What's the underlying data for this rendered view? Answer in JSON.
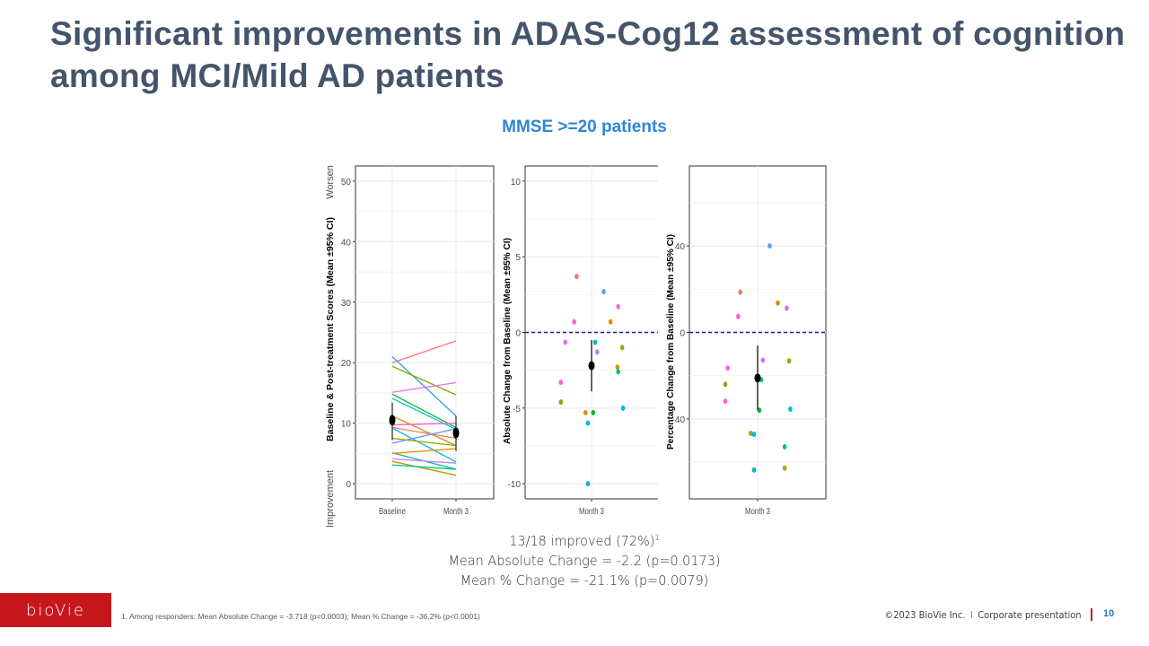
{
  "slide": {
    "title": "Significant improvements in ADAS-Cog12 assessment of cognition among MCI/Mild AD patients",
    "subtitle": "MMSE >=20 patients",
    "stats": {
      "line1": "13/18 improved (72%)",
      "line1_sup": "1",
      "line2": "Mean Absolute Change = -2.2 (p=0.0173)",
      "line3": "Mean % Change = -21.1% (p=0.0079)"
    },
    "footnote": "1. Among responders: Mean Absolute Change = -3.718 (p=0.0003); Mean % Change = -36.2% (p<0.0001)",
    "logo": "bioVie",
    "copyright": "©2023 BioVie Inc.",
    "copyright_sep": "I",
    "presentation": "Corporate presentation",
    "page_number": "10"
  },
  "colors": {
    "title": "#44546a",
    "subtitle": "#2e86d6",
    "brand_red": "#c8161d",
    "zero_line": "#1a1aa6"
  },
  "chart_data": [
    {
      "type": "line",
      "title": "",
      "xlabel": "",
      "ylabel": "Baseline & Post-treatment Scores (Mean ±95% CI)",
      "side_labels": {
        "top": "Worsen",
        "bottom": "Improvement"
      },
      "categories": [
        "Baseline",
        "Month 3"
      ],
      "ylim": [
        -2.5,
        52.5
      ],
      "yticks": [
        0,
        10,
        20,
        30,
        40,
        50
      ],
      "grid": true,
      "series": [
        {
          "color": "#f8766d",
          "values": [
            20.0,
            23.6
          ]
        },
        {
          "color": "#35a2e0",
          "values": [
            21.0,
            11.2
          ]
        },
        {
          "color": "#7cae00",
          "values": [
            19.4,
            14.7
          ]
        },
        {
          "color": "#e76bf3",
          "values": [
            15.1,
            16.7
          ]
        },
        {
          "color": "#00ba38",
          "values": [
            14.8,
            9.3
          ]
        },
        {
          "color": "#00bfc4",
          "values": [
            14.1,
            9.0
          ]
        },
        {
          "color": "#de8c00",
          "values": [
            11.2,
            6.3
          ]
        },
        {
          "color": "#fd61d1",
          "values": [
            9.7,
            10.0
          ]
        },
        {
          "color": "#f8766d",
          "values": [
            9.3,
            7.5
          ]
        },
        {
          "color": "#00b6eb",
          "values": [
            9.2,
            3.6
          ]
        },
        {
          "color": "#619cff",
          "values": [
            6.7,
            9.1
          ]
        },
        {
          "color": "#a3a500",
          "values": [
            7.5,
            6.3
          ]
        },
        {
          "color": "#00c08b",
          "values": [
            5.1,
            2.4
          ]
        },
        {
          "color": "#e58700",
          "values": [
            5.0,
            5.8
          ]
        },
        {
          "color": "#c77cff",
          "values": [
            4.1,
            3.4
          ]
        },
        {
          "color": "#b79f00",
          "values": [
            3.7,
            1.4
          ]
        },
        {
          "color": "#00c094",
          "values": [
            3.1,
            2.4
          ]
        }
      ],
      "mean": {
        "values": [
          10.5,
          8.4
        ],
        "ci_low": [
          7.2,
          5.4
        ],
        "ci_high": [
          13.4,
          11.2
        ]
      }
    },
    {
      "type": "scatter",
      "title": "",
      "xlabel": "",
      "ylabel": "Absolute Change from Baseline (Mean ±95% CI)",
      "categories": [
        "Month 3"
      ],
      "ylim": [
        -11,
        11
      ],
      "yticks": [
        -10,
        -5,
        0,
        5,
        10
      ],
      "ytick_labels": [
        "-10",
        "-5",
        "0",
        "5",
        "10"
      ],
      "grid": true,
      "reference_line": 0,
      "points": [
        {
          "jitter": -0.37,
          "y": 3.7,
          "color": "#f8766d"
        },
        {
          "jitter": 0.3,
          "y": 2.7,
          "color": "#619cff"
        },
        {
          "jitter": 0.66,
          "y": 1.7,
          "color": "#e76bf3"
        },
        {
          "jitter": -0.43,
          "y": 0.7,
          "color": "#fd61d1"
        },
        {
          "jitter": 0.47,
          "y": 0.7,
          "color": "#e58700"
        },
        {
          "jitter": -0.65,
          "y": -0.65,
          "color": "#e76bf3"
        },
        {
          "jitter": 0.09,
          "y": -0.65,
          "color": "#00bfa5"
        },
        {
          "jitter": 0.14,
          "y": -1.3,
          "color": "#c77cff"
        },
        {
          "jitter": 0.76,
          "y": -1.0,
          "color": "#a3a500"
        },
        {
          "jitter": 0.64,
          "y": -2.3,
          "color": "#c99800"
        },
        {
          "jitter": 0.66,
          "y": -2.6,
          "color": "#00c08b"
        },
        {
          "jitter": -0.76,
          "y": -3.3,
          "color": "#fd61d1"
        },
        {
          "jitter": -0.76,
          "y": -4.6,
          "color": "#7cae00"
        },
        {
          "jitter": 0.78,
          "y": -5.0,
          "color": "#00b6eb"
        },
        {
          "jitter": -0.15,
          "y": -5.3,
          "color": "#de8c00"
        },
        {
          "jitter": 0.04,
          "y": -5.3,
          "color": "#00ba38"
        },
        {
          "jitter": -0.09,
          "y": -6.0,
          "color": "#00b6eb"
        },
        {
          "jitter": -0.09,
          "y": -10.0,
          "color": "#00b6eb"
        }
      ],
      "mean": {
        "value": -2.2,
        "ci_low": -3.9,
        "ci_high": -0.5
      }
    },
    {
      "type": "scatter",
      "title": "",
      "xlabel": "",
      "ylabel": "Percentage Change from Baseline (Mean ±95% CI)",
      "categories": [
        "Month 3"
      ],
      "ylim": [
        -77,
        77
      ],
      "yticks": [
        -40,
        0,
        40
      ],
      "ytick_labels": [
        "-40",
        "0",
        "40"
      ],
      "grid": true,
      "reference_line": 0,
      "points": [
        {
          "jitter": 0.3,
          "y": 40.0,
          "color": "#619cff"
        },
        {
          "jitter": -0.43,
          "y": 18.6,
          "color": "#f8766d"
        },
        {
          "jitter": 0.5,
          "y": 13.6,
          "color": "#e58700"
        },
        {
          "jitter": 0.72,
          "y": 11.2,
          "color": "#e76bf3"
        },
        {
          "jitter": -0.48,
          "y": 7.4,
          "color": "#fd61d1"
        },
        {
          "jitter": 0.13,
          "y": -12.8,
          "color": "#c77cff"
        },
        {
          "jitter": 0.78,
          "y": -13.2,
          "color": "#a3a500"
        },
        {
          "jitter": -0.74,
          "y": -16.5,
          "color": "#e76bf3"
        },
        {
          "jitter": 0.09,
          "y": -21.9,
          "color": "#00bfa5"
        },
        {
          "jitter": -0.8,
          "y": -24.0,
          "color": "#7cae00"
        },
        {
          "jitter": -0.8,
          "y": -31.8,
          "color": "#fd61d1"
        },
        {
          "jitter": 0.04,
          "y": -36.0,
          "color": "#00ba38"
        },
        {
          "jitter": 0.81,
          "y": -35.5,
          "color": "#00b6eb"
        },
        {
          "jitter": -0.17,
          "y": -46.7,
          "color": "#c99800"
        },
        {
          "jitter": -0.09,
          "y": -47.1,
          "color": "#00b6eb"
        },
        {
          "jitter": 0.67,
          "y": -52.9,
          "color": "#00c08b"
        },
        {
          "jitter": -0.09,
          "y": -63.6,
          "color": "#00bfc4"
        },
        {
          "jitter": 0.67,
          "y": -62.8,
          "color": "#b79f00"
        }
      ],
      "mean": {
        "value": -21.1,
        "ci_low": -36.0,
        "ci_high": -6.0
      }
    }
  ]
}
